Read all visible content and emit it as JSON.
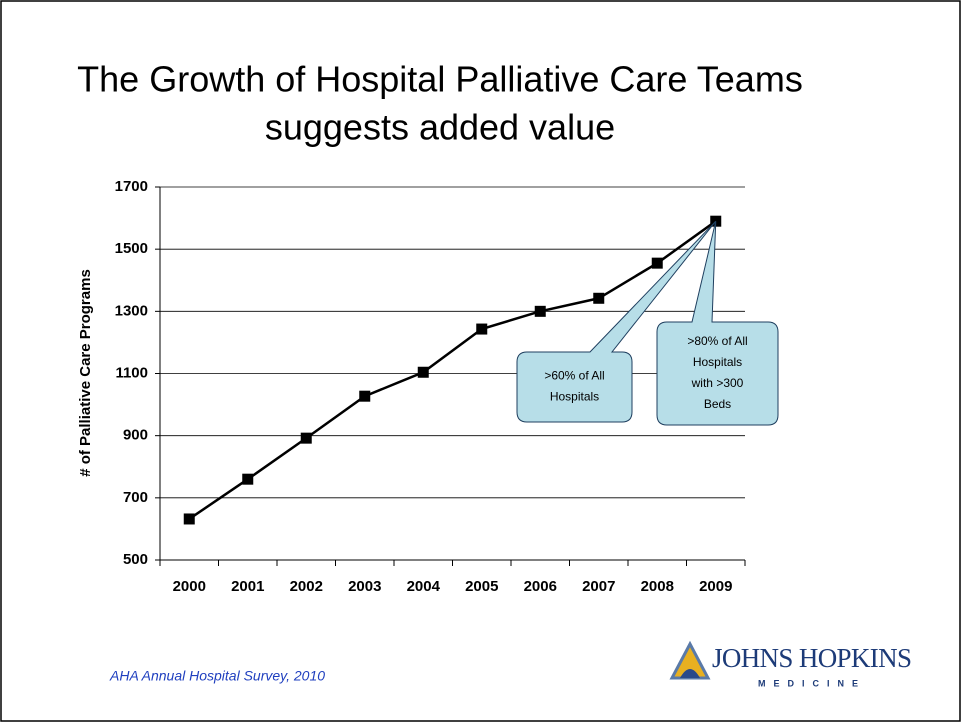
{
  "chart_data": {
    "type": "line",
    "title": [
      "The Growth of Hospital Palliative Care Teams",
      "suggests added value"
    ],
    "y_label": "# of Palliative Care Programs",
    "categories": [
      "2000",
      "2001",
      "2002",
      "2003",
      "2004",
      "2005",
      "2006",
      "2007",
      "2008",
      "2009"
    ],
    "values": [
      632,
      760,
      892,
      1027,
      1104,
      1243,
      1300,
      1342,
      1455,
      1590
    ],
    "color": "#000000",
    "ylim": [
      500,
      1700
    ],
    "yticks": [
      500,
      700,
      900,
      1100,
      1300,
      1500,
      1700
    ],
    "grid": true,
    "annotations": [
      [
        "&gt;60% of All",
        "Hospitals"
      ],
      [
        "&gt;80% of All",
        "Hospitals",
        "with &gt;300",
        "Beds"
      ]
    ],
    "source": "AHA Annual Hospital Survey, 2010",
    "logo": {
      "name": "JOHNS HOPKINS",
      "sub": "MEDICINE"
    }
  }
}
